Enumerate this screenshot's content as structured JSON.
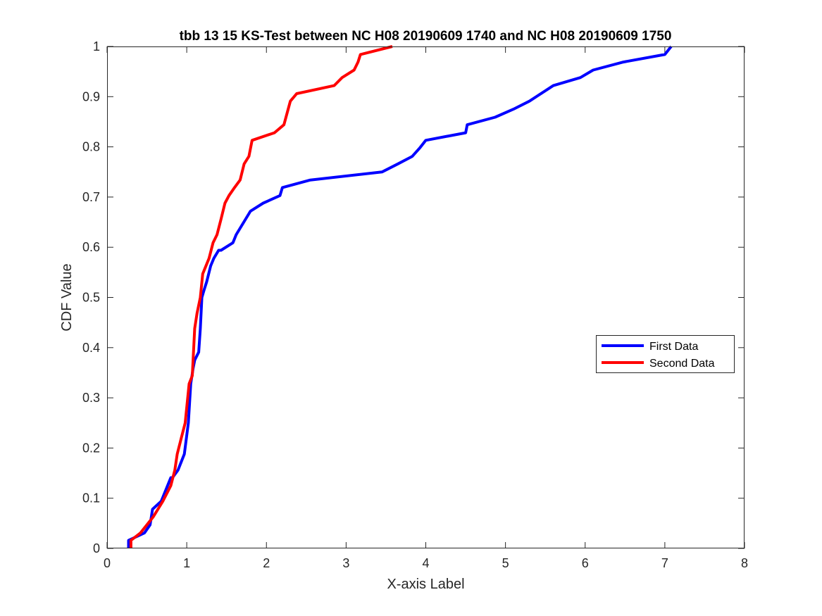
{
  "chart_data": {
    "type": "line",
    "title": "tbb 13 15 KS-Test between NC H08 20190609 1740 and NC H08 20190609 1750",
    "xlabel": "X-axis Label",
    "ylabel": "CDF Value",
    "xlim": [
      0,
      8
    ],
    "ylim": [
      0,
      1
    ],
    "xticks": [
      0,
      1,
      2,
      3,
      4,
      5,
      6,
      7,
      8
    ],
    "yticks": [
      0,
      0.1,
      0.2,
      0.3,
      0.4,
      0.5,
      0.6,
      0.7,
      0.8,
      0.9,
      1
    ],
    "grid": false,
    "legend_position": "middle-right",
    "series": [
      {
        "name": "First Data",
        "color": "#0000ff",
        "x": [
          0.27,
          0.27,
          0.47,
          0.54,
          0.57,
          0.68,
          0.8,
          0.82,
          0.89,
          0.93,
          0.97,
          1.02,
          1.05,
          1.08,
          1.1,
          1.15,
          1.17,
          1.19,
          1.22,
          1.25,
          1.3,
          1.34,
          1.4,
          1.43,
          1.58,
          1.62,
          1.8,
          1.96,
          2.17,
          2.2,
          2.55,
          3.45,
          3.65,
          3.83,
          3.92,
          4.0,
          4.5,
          4.52,
          4.87,
          5.1,
          5.3,
          5.6,
          5.94,
          6.1,
          6.48,
          7.0,
          7.08
        ],
        "y": [
          0,
          0.016,
          0.031,
          0.047,
          0.078,
          0.094,
          0.141,
          0.141,
          0.156,
          0.172,
          0.188,
          0.25,
          0.328,
          0.359,
          0.375,
          0.391,
          0.438,
          0.5,
          0.516,
          0.531,
          0.563,
          0.578,
          0.594,
          0.594,
          0.609,
          0.625,
          0.672,
          0.688,
          0.703,
          0.719,
          0.734,
          0.75,
          0.766,
          0.781,
          0.797,
          0.813,
          0.828,
          0.844,
          0.859,
          0.875,
          0.891,
          0.922,
          0.938,
          0.953,
          0.969,
          0.984,
          1.0
        ]
      },
      {
        "name": "Second Data",
        "color": "#ff0000",
        "x": [
          0.3,
          0.3,
          0.42,
          0.58,
          0.7,
          0.8,
          0.85,
          0.88,
          0.93,
          0.98,
          1.03,
          1.07,
          1.1,
          1.13,
          1.17,
          1.2,
          1.28,
          1.33,
          1.38,
          1.43,
          1.48,
          1.53,
          1.6,
          1.67,
          1.72,
          1.78,
          1.82,
          2.1,
          2.22,
          2.3,
          2.38,
          2.85,
          2.95,
          3.1,
          3.15,
          3.18,
          3.58
        ],
        "y": [
          0,
          0.016,
          0.031,
          0.063,
          0.094,
          0.125,
          0.156,
          0.188,
          0.219,
          0.25,
          0.328,
          0.344,
          0.438,
          0.469,
          0.5,
          0.547,
          0.578,
          0.609,
          0.625,
          0.656,
          0.688,
          0.703,
          0.719,
          0.734,
          0.766,
          0.781,
          0.813,
          0.828,
          0.844,
          0.891,
          0.906,
          0.922,
          0.938,
          0.953,
          0.969,
          0.984,
          1.0
        ]
      }
    ]
  }
}
